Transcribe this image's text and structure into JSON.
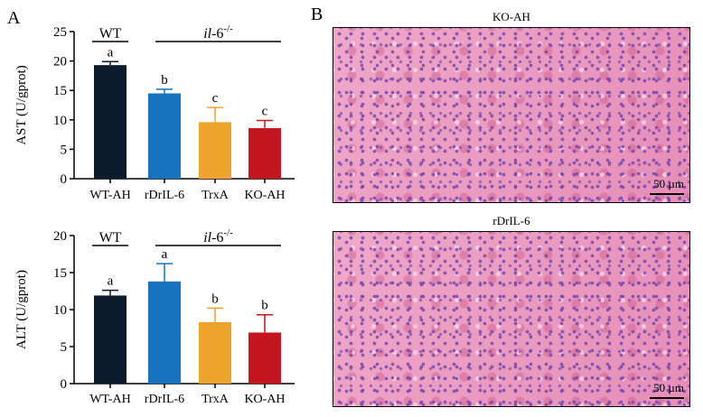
{
  "panels": {
    "a_label": "A",
    "b_label": "B"
  },
  "chart_data": [
    {
      "type": "bar",
      "categories": [
        "WT-AH",
        "rDrIL-6",
        "TrxA",
        "KO-AH"
      ],
      "values": [
        19.3,
        14.5,
        9.6,
        8.6
      ],
      "errors": [
        0.6,
        0.7,
        2.5,
        1.3
      ],
      "letters": [
        "a",
        "b",
        "c",
        "c"
      ],
      "colors": [
        "#0b1b2b",
        "#1672bd",
        "#f0a22e",
        "#c3161f"
      ],
      "ylabel": "AST (U/gprot)",
      "ylim": [
        0,
        25
      ],
      "yticks": [
        "0",
        "5",
        "10",
        "15",
        "20",
        "25"
      ],
      "group_labels": {
        "wt": "WT",
        "ko_italic": "il",
        "ko_suffix": "-6",
        "ko_sup": "-/-"
      }
    },
    {
      "type": "bar",
      "categories": [
        "WT-AH",
        "rDrIL-6",
        "TrxA",
        "KO-AH"
      ],
      "values": [
        11.9,
        13.8,
        8.3,
        6.9
      ],
      "errors": [
        0.7,
        2.4,
        1.9,
        2.4
      ],
      "letters": [
        "a",
        "a",
        "b",
        "b"
      ],
      "colors": [
        "#0b1b2b",
        "#1672bd",
        "#f0a22e",
        "#c3161f"
      ],
      "ylabel": "ALT (U/gprot)",
      "ylim": [
        0,
        20
      ],
      "yticks": [
        "0",
        "5",
        "10",
        "15",
        "20"
      ],
      "group_labels": {
        "wt": "WT",
        "ko_italic": "il",
        "ko_suffix": "-6",
        "ko_sup": "-/-"
      }
    }
  ],
  "micrographs": [
    {
      "title": "KO-AH",
      "scale_label": "50 µm"
    },
    {
      "title": "rDrIL-6",
      "scale_label": "50 µm"
    }
  ]
}
